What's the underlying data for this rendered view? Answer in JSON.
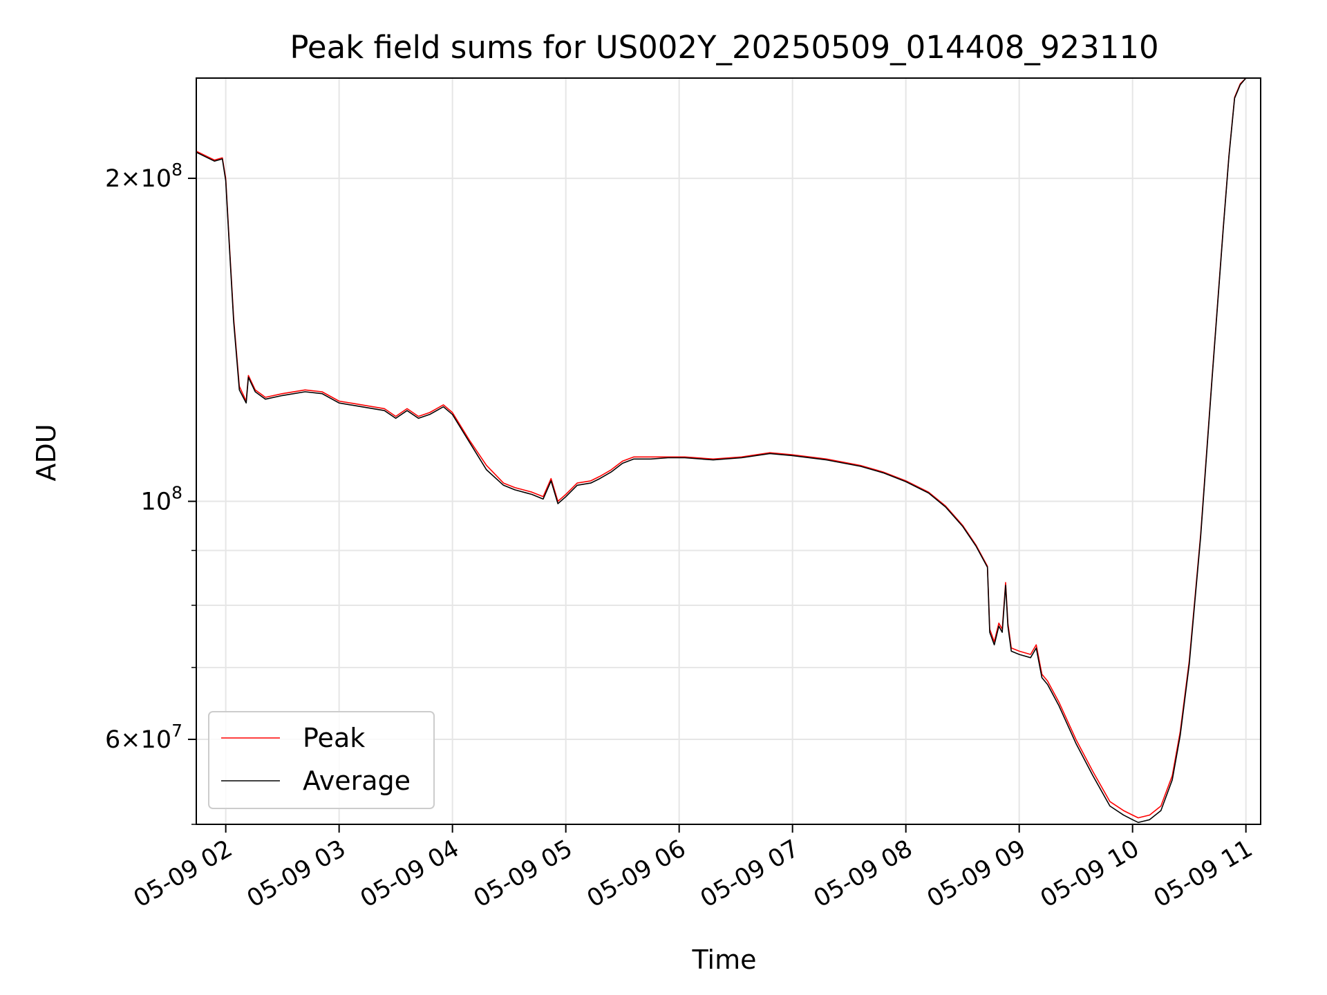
{
  "chart_data": {
    "type": "line",
    "title": "Peak field sums for US002Y_20250509_014408_923110",
    "xlabel": "Time",
    "ylabel": "ADU",
    "x_unit": "hours on 2025-05-09",
    "xlim": [
      1.74,
      11.13
    ],
    "ylim": [
      50000000,
      248000000
    ],
    "y_scale": "log",
    "grid": true,
    "legend_position": "lower-left",
    "x_ticks": [
      {
        "value": 2,
        "label": "05-09 02"
      },
      {
        "value": 3,
        "label": "05-09 03"
      },
      {
        "value": 4,
        "label": "05-09 04"
      },
      {
        "value": 5,
        "label": "05-09 05"
      },
      {
        "value": 6,
        "label": "05-09 06"
      },
      {
        "value": 7,
        "label": "05-09 07"
      },
      {
        "value": 8,
        "label": "05-09 08"
      },
      {
        "value": 9,
        "label": "05-09 09"
      },
      {
        "value": 10,
        "label": "05-09 10"
      },
      {
        "value": 11,
        "label": "05-09 11"
      }
    ],
    "y_major_ticks": [
      {
        "value": 200000000,
        "mantissa": "2",
        "exponent": "8"
      },
      {
        "value": 100000000,
        "mantissa": "",
        "exponent": "8"
      },
      {
        "value": 60000000,
        "mantissa": "6",
        "exponent": "7"
      }
    ],
    "y_minor_ticks": [
      50000000,
      70000000,
      80000000,
      90000000
    ],
    "series": [
      {
        "name": "Peak",
        "color": "#ff0000",
        "x": [
          1.74,
          1.9,
          1.97,
          2.0,
          2.03,
          2.07,
          2.12,
          2.18,
          2.2,
          2.26,
          2.35,
          2.5,
          2.7,
          2.85,
          3.0,
          3.2,
          3.4,
          3.5,
          3.6,
          3.7,
          3.8,
          3.92,
          4.0,
          4.15,
          4.3,
          4.45,
          4.55,
          4.7,
          4.8,
          4.87,
          4.93,
          5.0,
          5.1,
          5.22,
          5.3,
          5.4,
          5.5,
          5.6,
          5.75,
          5.9,
          6.05,
          6.3,
          6.55,
          6.8,
          7.0,
          7.3,
          7.6,
          7.8,
          8.0,
          8.2,
          8.35,
          8.5,
          8.62,
          8.72,
          8.74,
          8.78,
          8.82,
          8.85,
          8.88,
          8.9,
          8.93,
          9.0,
          9.1,
          9.15,
          9.2,
          9.25,
          9.35,
          9.5,
          9.65,
          9.8,
          9.92,
          10.0,
          10.05,
          10.15,
          10.25,
          10.35,
          10.42,
          10.5,
          10.6,
          10.7,
          10.8,
          10.85,
          10.9,
          10.95,
          11.0,
          11.02
        ],
        "y": [
          212000000,
          208000000,
          209000000,
          200000000,
          175000000,
          148000000,
          128000000,
          124000000,
          131000000,
          127000000,
          125000000,
          126000000,
          127000000,
          126500000,
          124000000,
          123000000,
          122000000,
          120000000,
          122000000,
          120000000,
          121000000,
          123000000,
          121000000,
          114000000,
          108000000,
          104000000,
          103000000,
          102000000,
          101000000,
          105000000,
          100000000,
          101500000,
          104000000,
          104500000,
          105500000,
          107000000,
          109000000,
          110000000,
          110000000,
          110000000,
          110000000,
          109500000,
          110000000,
          111000000,
          110500000,
          109500000,
          108000000,
          106500000,
          104500000,
          102000000,
          99000000,
          95000000,
          91000000,
          87000000,
          76000000,
          74000000,
          77000000,
          76000000,
          84000000,
          77000000,
          73000000,
          72500000,
          72000000,
          73500000,
          69000000,
          68000000,
          65000000,
          60000000,
          56000000,
          52500000,
          51500000,
          51000000,
          50700000,
          51000000,
          52000000,
          55500000,
          61000000,
          71000000,
          93000000,
          130000000,
          180000000,
          210000000,
          238000000,
          245000000,
          248000000,
          248000000
        ]
      },
      {
        "name": "Average",
        "color": "#000000",
        "x": [
          1.74,
          1.9,
          1.97,
          2.0,
          2.03,
          2.07,
          2.12,
          2.18,
          2.2,
          2.26,
          2.35,
          2.5,
          2.7,
          2.85,
          3.0,
          3.2,
          3.4,
          3.5,
          3.6,
          3.7,
          3.8,
          3.92,
          4.0,
          4.15,
          4.3,
          4.45,
          4.55,
          4.7,
          4.8,
          4.87,
          4.93,
          5.0,
          5.1,
          5.22,
          5.3,
          5.4,
          5.5,
          5.6,
          5.75,
          5.9,
          6.05,
          6.3,
          6.55,
          6.8,
          7.0,
          7.3,
          7.6,
          7.8,
          8.0,
          8.2,
          8.35,
          8.5,
          8.62,
          8.72,
          8.74,
          8.78,
          8.82,
          8.85,
          8.88,
          8.9,
          8.93,
          9.0,
          9.1,
          9.15,
          9.2,
          9.25,
          9.35,
          9.5,
          9.65,
          9.8,
          9.92,
          10.0,
          10.05,
          10.15,
          10.25,
          10.35,
          10.42,
          10.5,
          10.6,
          10.7,
          10.8,
          10.85,
          10.9,
          10.95,
          11.0,
          11.02
        ],
        "y": [
          211500000,
          207500000,
          208500000,
          199000000,
          174000000,
          147000000,
          127000000,
          123500000,
          130500000,
          126500000,
          124500000,
          125500000,
          126500000,
          126000000,
          123500000,
          122500000,
          121500000,
          119500000,
          121500000,
          119500000,
          120500000,
          122500000,
          120500000,
          113500000,
          107000000,
          103500000,
          102500000,
          101500000,
          100500000,
          104500000,
          99500000,
          101000000,
          103500000,
          104000000,
          105000000,
          106500000,
          108500000,
          109500000,
          109500000,
          109800000,
          109800000,
          109300000,
          109800000,
          110800000,
          110300000,
          109300000,
          107800000,
          106300000,
          104300000,
          101800000,
          98800000,
          94800000,
          90800000,
          86800000,
          75500000,
          73500000,
          76500000,
          75500000,
          83500000,
          76500000,
          72500000,
          72000000,
          71500000,
          73000000,
          68500000,
          67500000,
          64500000,
          59500000,
          55500000,
          52000000,
          51000000,
          50500000,
          50200000,
          50500000,
          51500000,
          55000000,
          60500000,
          70500000,
          92500000,
          129500000,
          179500000,
          209500000,
          237500000,
          244500000,
          248000000,
          248000000
        ]
      }
    ]
  }
}
